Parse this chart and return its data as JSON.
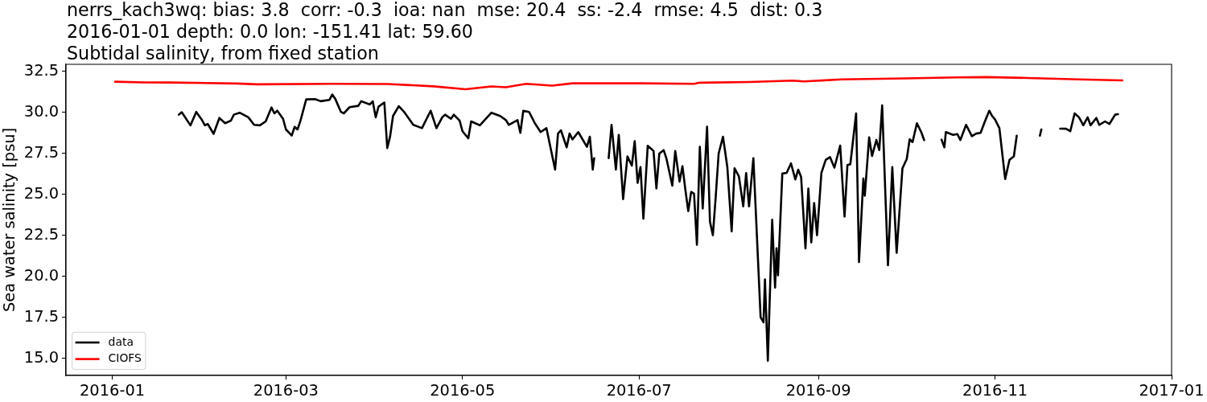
{
  "chart_data": {
    "type": "line",
    "title": "nerrs_kach3wq: bias: 3.8  corr: -0.3  ioa: nan  mse: 20.4  ss: -2.4  rmse: 4.5  dist: 0.3\n2016-01-01 depth: 0.0 lon: -151.41 lat: 59.60\nSubtidal salinity, from fixed station",
    "ylabel": "Sea water salinity [psu]",
    "xlim": [
      "2015-12-16",
      "2017-01-01"
    ],
    "xticks": [
      "2016-01",
      "2016-03",
      "2016-05",
      "2016-07",
      "2016-09",
      "2016-11",
      "2017-01"
    ],
    "ylim": [
      13.95,
      32.92
    ],
    "yticks": [
      {
        "value": 15,
        "label": "15.0"
      },
      17.5,
      {
        "value": 20,
        "label": "20.0"
      },
      22.5,
      {
        "value": 25,
        "label": "25.0"
      },
      27.5,
      {
        "value": 30,
        "label": "30.0"
      },
      32.5
    ],
    "legend": "bottom left",
    "series": [
      {
        "name": "data",
        "color": "#000000",
        "x": [
          "2016-01-24",
          "2016-01-25",
          "2016-01-28",
          "2016-01-30",
          "2016-02-01",
          "2016-02-02",
          "2016-02-03",
          "2016-02-05",
          "2016-02-07",
          "2016-02-09",
          "2016-02-11",
          "2016-02-12",
          "2016-02-14",
          "2016-02-17",
          "2016-02-19",
          "2016-02-21",
          "2016-02-23",
          "2016-02-25",
          "2016-02-26",
          "2016-02-27",
          "2016-02-29",
          "2016-03-01",
          "2016-03-03",
          "2016-03-04",
          "2016-03-05",
          "2016-03-06",
          "2016-03-08",
          "2016-03-11",
          "2016-03-13",
          "2016-03-16",
          "2016-03-17",
          "2016-03-18",
          "2016-03-20",
          "2016-03-21",
          "2016-03-23",
          "2016-03-26",
          "2016-03-27",
          "2016-03-30",
          "2016-03-31",
          "2016-04-01",
          "2016-04-02",
          "2016-04-04",
          "2016-04-05",
          "2016-04-06",
          "2016-04-07",
          "2016-04-09",
          "2016-04-11",
          "2016-04-14",
          "2016-04-17",
          "2016-04-20",
          "2016-04-22",
          "2016-04-24",
          "2016-04-25",
          "2016-04-27",
          "2016-04-28",
          "2016-04-30",
          "2016-05-01",
          "2016-05-03",
          "2016-05-04",
          "2016-05-07",
          "2016-05-11",
          "2016-05-14",
          "2016-05-16",
          "2016-05-17",
          "2016-05-20",
          "2016-05-21",
          "2016-05-22",
          "2016-05-24",
          "2016-05-26",
          "2016-05-28",
          "2016-05-30",
          "2016-06-02",
          "2016-06-03",
          "2016-06-04",
          "2016-06-06",
          "2016-06-07",
          "2016-06-08",
          "2016-06-10",
          "2016-06-13",
          "2016-06-14",
          "2016-06-15",
          "2016-06-15T12:00",
          "2016-06-18",
          "2016-06-20T12:00",
          "2016-06-21T12:00",
          "2016-06-23",
          "2016-06-24",
          "2016-06-25T12:00",
          "2016-06-27",
          "2016-06-28T12:00",
          "2016-06-29T12:00",
          "2016-06-30T12:00",
          "2016-07-01T12:00",
          "2016-07-02T12:00",
          "2016-07-04",
          "2016-07-06",
          "2016-07-07",
          "2016-07-08",
          "2016-07-09T12:00",
          "2016-07-10T12:00",
          "2016-07-12T12:00",
          "2016-07-13T12:00",
          "2016-07-15",
          "2016-07-16",
          "2016-07-17",
          "2016-07-18",
          "2016-07-19",
          "2016-07-20",
          "2016-07-21",
          "2016-07-22",
          "2016-07-23",
          "2016-07-24T12:00",
          "2016-07-25T12:00",
          "2016-07-26T12:00",
          "2016-07-27T12:00",
          "2016-07-28T12:00",
          "2016-07-30",
          "2016-07-31T12:00",
          "2016-08-02",
          "2016-08-03",
          "2016-08-04T12:00",
          "2016-08-06",
          "2016-08-07",
          "2016-08-08",
          "2016-08-09T12:00",
          "2016-08-12",
          "2016-08-13",
          "2016-08-13T12:00",
          "2016-08-14T12:00",
          "2016-08-16",
          "2016-08-17",
          "2016-08-17T12:00",
          "2016-08-18",
          "2016-08-19T12:00",
          "2016-08-21",
          "2016-08-22T12:00",
          "2016-08-24",
          "2016-08-25",
          "2016-08-26",
          "2016-08-27T12:00",
          "2016-08-28T12:00",
          "2016-08-29T12:00",
          "2016-08-30T12:00",
          "2016-08-31T12:00",
          "2016-09-02",
          "2016-09-03T12:00",
          "2016-09-05",
          "2016-09-06T12:00",
          "2016-09-08T12:00",
          "2016-09-10",
          "2016-09-11",
          "2016-09-12",
          "2016-09-14",
          "2016-09-15",
          "2016-09-16T12:00",
          "2016-09-17",
          "2016-09-18T12:00",
          "2016-09-19T12:00",
          "2016-09-21",
          "2016-09-22",
          "2016-09-23",
          "2016-09-25",
          "2016-09-26T12:00",
          "2016-09-28",
          "2016-09-30",
          "2016-10-01T12:00",
          "2016-10-02T12:00",
          "2016-10-03T12:00",
          "2016-10-05",
          "2016-10-06T12:00",
          "2016-10-07T12:00",
          "2016-10-10",
          "2016-10-13T12:00",
          "2016-10-14T12:00",
          "2016-10-15",
          "2016-10-17T12:00",
          "2016-10-19",
          "2016-10-20",
          "2016-10-22",
          "2016-10-24",
          "2016-10-25T12:00",
          "2016-10-27",
          "2016-10-28T12:00",
          "2016-10-30",
          "2016-10-31",
          "2016-11-01",
          "2016-11-02T12:00",
          "2016-11-04T12:00",
          "2016-11-06",
          "2016-11-07T12:00",
          "2016-11-08T12:00",
          "2016-11-12",
          "2016-11-16T12:00",
          "2016-11-17",
          "2016-11-20",
          "2016-11-23T12:00",
          "2016-11-25T12:00",
          "2016-11-27",
          "2016-11-28T12:00",
          "2016-11-30",
          "2016-12-01T12:00",
          "2016-12-03",
          "2016-12-04",
          "2016-12-06",
          "2016-12-07",
          "2016-12-09",
          "2016-12-10T12:00",
          "2016-12-12T12:00",
          "2016-12-13T12:00"
        ],
        "values": [
          29.85,
          30.0,
          29.2,
          30.02,
          29.52,
          29.2,
          29.28,
          28.68,
          29.65,
          29.33,
          29.49,
          29.85,
          29.97,
          29.69,
          29.23,
          29.2,
          29.44,
          30.29,
          29.93,
          30.09,
          29.6,
          28.95,
          28.58,
          29.11,
          28.95,
          29.47,
          30.78,
          30.8,
          30.67,
          30.75,
          31.08,
          30.83,
          30.02,
          29.93,
          30.31,
          30.39,
          30.67,
          30.47,
          30.67,
          29.69,
          30.34,
          30.59,
          27.81,
          28.54,
          29.77,
          30.37,
          29.98,
          29.23,
          29.03,
          30.09,
          29.03,
          29.69,
          29.85,
          29.6,
          29.85,
          29.49,
          28.84,
          28.41,
          29.44,
          29.2,
          29.97,
          29.77,
          29.52,
          29.23,
          29.52,
          28.74,
          30.09,
          30.02,
          29.33,
          28.79,
          29.03,
          26.5,
          28.7,
          28.9,
          27.86,
          28.7,
          28.34,
          28.79,
          27.89,
          28.51,
          26.5,
          27.2,
          null,
          27.2,
          29.23,
          26.5,
          28.62,
          24.7,
          27.31,
          26.74,
          28.24,
          25.69,
          26.66,
          23.51,
          27.96,
          27.64,
          25.35,
          27.48,
          27.69,
          27.15,
          25.52,
          27.64,
          25.77,
          26.71,
          25.28,
          23.97,
          25.14,
          25.03,
          21.92,
          27.89,
          24.13,
          29.12,
          23.32,
          22.5,
          24.86,
          27.48,
          28.51,
          26.66,
          22.74,
          26.58,
          26.09,
          24.26,
          26.29,
          24.26,
          27.2,
          17.5,
          17.19,
          19.8,
          14.85,
          23.45,
          19.31,
          21.71,
          20.05,
          26.26,
          26.3,
          26.88,
          25.9,
          26.5,
          26.05,
          21.7,
          25.35,
          22.06,
          24.46,
          22.5,
          26.3,
          27.09,
          27.26,
          26.62,
          27.97,
          23.64,
          26.78,
          26.83,
          29.93,
          20.86,
          25.96,
          24.91,
          28.47,
          27.33,
          28.31,
          27.69,
          30.42,
          20.67,
          26.66,
          21.43,
          26.58,
          27.15,
          28.35,
          28.18,
          29.33,
          28.79,
          28.3,
          null,
          28.33,
          27.86,
          28.79,
          28.62,
          28.67,
          28.3,
          29.23,
          28.54,
          28.7,
          28.74,
          29.44,
          30.09,
          29.77,
          29.56,
          29.03,
          25.93,
          27.1,
          27.31,
          28.57,
          null,
          28.57,
          28.95,
          null,
          29.0,
          28.99,
          28.84,
          29.93,
          29.69,
          29.2,
          29.69,
          29.2,
          29.65,
          29.23,
          29.44,
          29.28,
          29.85,
          29.88
        ]
      },
      {
        "name": "CIOFS",
        "color": "#ff0000",
        "x": [
          "2016-01-02",
          "2016-01-12",
          "2016-01-21",
          "2016-02-13",
          "2016-02-20",
          "2016-03-17",
          "2016-04-05",
          "2016-04-21",
          "2016-05-02",
          "2016-05-11",
          "2016-05-16",
          "2016-05-23",
          "2016-06-01",
          "2016-06-08",
          "2016-06-19",
          "2016-07-02",
          "2016-07-20",
          "2016-07-22",
          "2016-08-08",
          "2016-08-23",
          "2016-08-27",
          "2016-09-09",
          "2016-10-01",
          "2016-10-19",
          "2016-10-29",
          "2016-11-12",
          "2016-11-30",
          "2016-12-15"
        ],
        "values": [
          31.86,
          31.82,
          31.81,
          31.75,
          31.7,
          31.73,
          31.72,
          31.58,
          31.4,
          31.57,
          31.52,
          31.73,
          31.62,
          31.76,
          31.76,
          31.76,
          31.73,
          31.8,
          31.84,
          31.93,
          31.88,
          32.0,
          32.06,
          32.12,
          32.14,
          32.09,
          32.0,
          31.94
        ]
      }
    ]
  }
}
